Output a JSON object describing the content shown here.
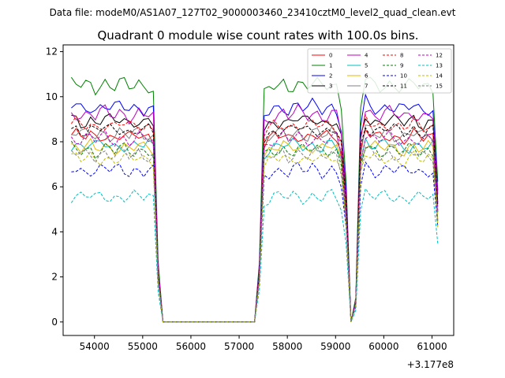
{
  "chart_data": {
    "type": "line",
    "suptitle": "Data file: modeM0/AS1A07_127T02_9000003460_23410cztM0_level2_quad_clean.evt",
    "title": "Quadrant 0 module wise count rates with 100.0s bins.",
    "xlabel": "",
    "ylabel": "",
    "x_offset_label": "+3.177e8",
    "xlim": [
      53350,
      61450
    ],
    "ylim": [
      -0.6,
      12.3
    ],
    "x_ticks": [
      54000,
      55000,
      56000,
      57000,
      58000,
      59000,
      60000,
      61000
    ],
    "x_tick_labels": [
      "54000",
      "55000",
      "56000",
      "57000",
      "58000",
      "59000",
      "60000",
      "61000"
    ],
    "y_ticks": [
      0,
      2,
      4,
      6,
      8,
      10,
      12
    ],
    "y_tick_labels": [
      "0",
      "2",
      "4",
      "6",
      "8",
      "10",
      "12"
    ],
    "grid": false,
    "legend_location": "top-right",
    "legend_columns": 4,
    "x_start": 53520,
    "x_step": 100,
    "profile": [
      1.0,
      1.0,
      0.985,
      0.99,
      1.0,
      0.98,
      0.995,
      1.005,
      0.99,
      0.985,
      1.0,
      0.995,
      0.98,
      0.99,
      1.0,
      0.985,
      0.99,
      0.98,
      0.25,
      0.0,
      0.0,
      0.0,
      0.0,
      0.0,
      0.0,
      0.0,
      0.0,
      0.0,
      0.0,
      0.0,
      0.0,
      0.0,
      0.0,
      0.0,
      0.0,
      0.0,
      0.0,
      0.0,
      0.0,
      0.25,
      0.95,
      0.97,
      0.985,
      0.99,
      1.0,
      0.98,
      0.995,
      1.005,
      0.99,
      0.985,
      1.0,
      0.995,
      0.98,
      0.99,
      1.0,
      0.985,
      0.9,
      0.6,
      0.0,
      0.1,
      0.9,
      1.02,
      1.0,
      0.99,
      0.985,
      0.995,
      1.0,
      0.99,
      0.985,
      0.98,
      0.99,
      1.0,
      0.985,
      0.98,
      0.99,
      0.985,
      0.6
    ],
    "series": [
      {
        "name": "0",
        "color": "#ff0000",
        "dash": "solid",
        "level": 8.3
      },
      {
        "name": "1",
        "color": "#008000",
        "dash": "solid",
        "level": 10.6
      },
      {
        "name": "2",
        "color": "#0000ff",
        "dash": "solid",
        "level": 9.6
      },
      {
        "name": "3",
        "color": "#000000",
        "dash": "solid",
        "level": 9.0
      },
      {
        "name": "4",
        "color": "#bf00bf",
        "dash": "solid",
        "level": 9.3
      },
      {
        "name": "5",
        "color": "#00bfbf",
        "dash": "solid",
        "level": 7.9
      },
      {
        "name": "6",
        "color": "#e6b800",
        "dash": "solid",
        "level": 7.8
      },
      {
        "name": "7",
        "color": "#808080",
        "dash": "solid",
        "level": 8.4
      },
      {
        "name": "8",
        "color": "#ff0000",
        "dash": "dashed",
        "level": 8.8
      },
      {
        "name": "9",
        "color": "#008000",
        "dash": "dashed",
        "level": 7.7
      },
      {
        "name": "10",
        "color": "#0000ff",
        "dash": "dashed",
        "level": 6.8
      },
      {
        "name": "11",
        "color": "#000000",
        "dash": "dashed",
        "level": 8.6
      },
      {
        "name": "12",
        "color": "#bf00bf",
        "dash": "dashed",
        "level": 8.2
      },
      {
        "name": "13",
        "color": "#00bfbf",
        "dash": "dashed",
        "level": 5.6
      },
      {
        "name": "14",
        "color": "#bfbf00",
        "dash": "dashed",
        "level": 7.3
      },
      {
        "name": "15",
        "color": "#808080",
        "dash": "dashed",
        "level": 7.5
      }
    ]
  }
}
